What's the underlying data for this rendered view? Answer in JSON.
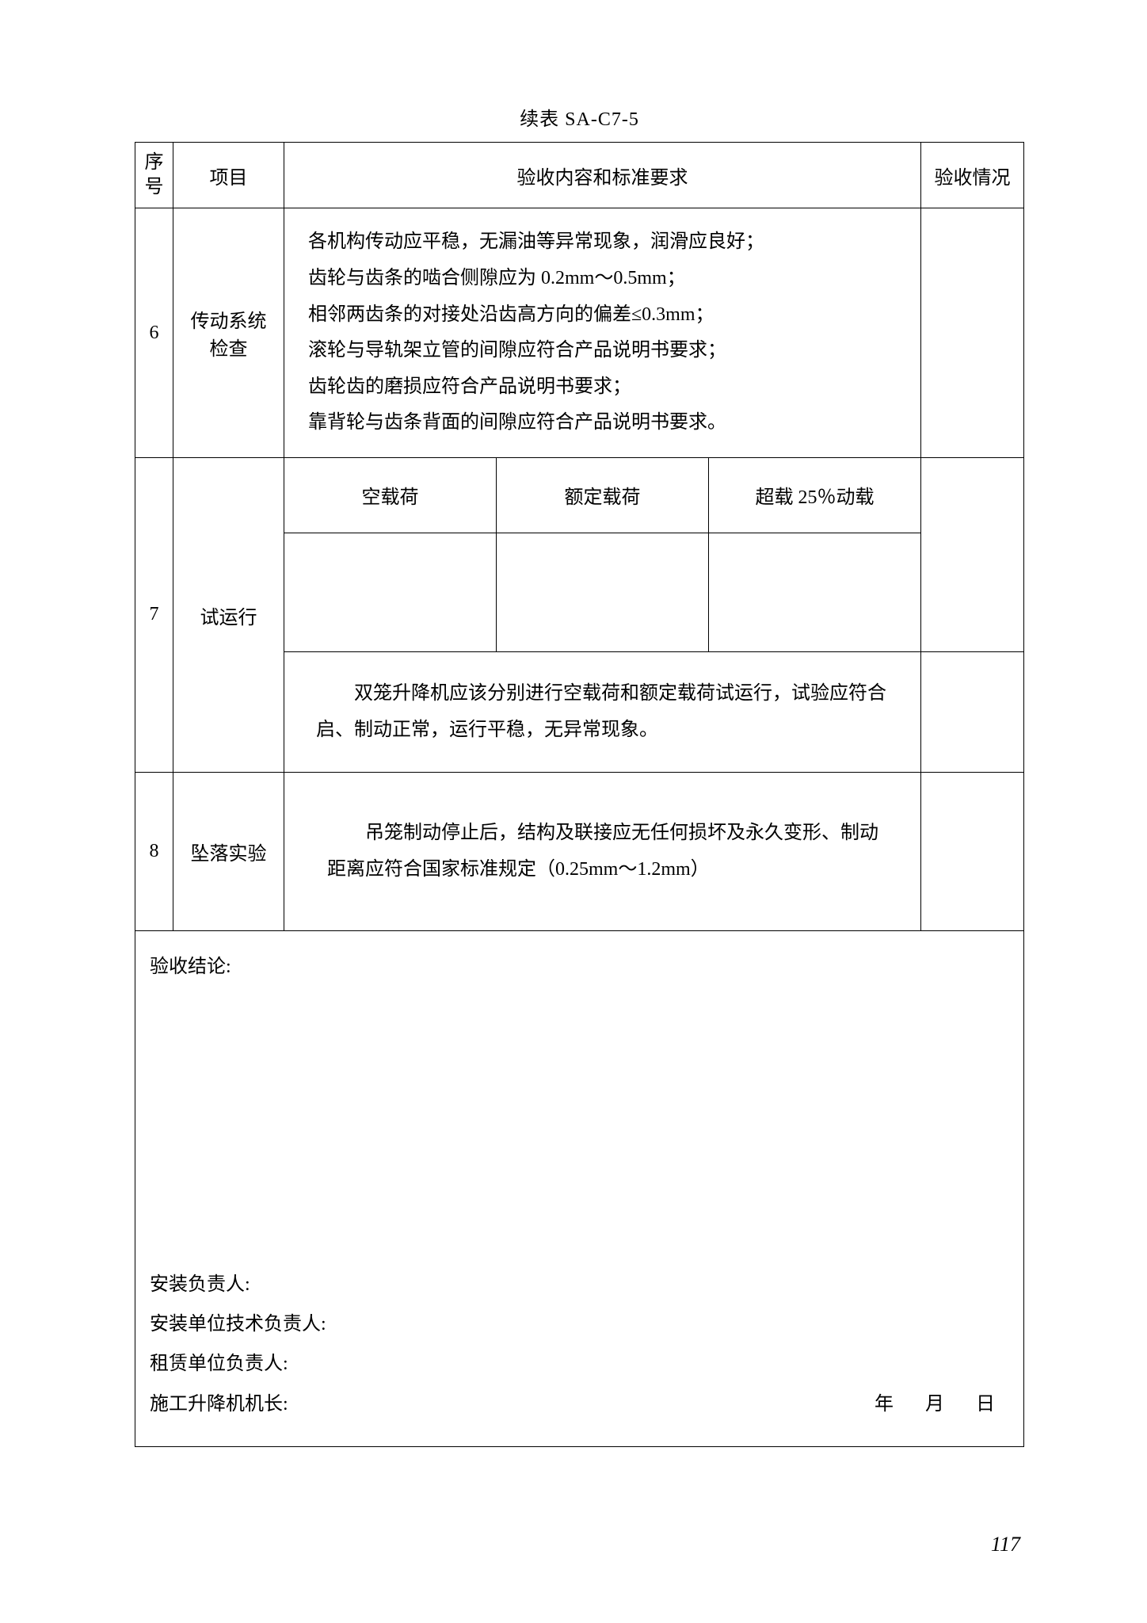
{
  "title": "续表 SA-C7-5",
  "header": {
    "seq": "序号",
    "item": "项目",
    "content": "验收内容和标准要求",
    "result": "验收情况"
  },
  "row6": {
    "seq": "6",
    "item": "传动系统检查",
    "lines": [
      "各机构传动应平稳，无漏油等异常现象，润滑应良好；",
      "齿轮与齿条的啮合侧隙应为 0.2mm～0.5mm；",
      "相邻两齿条的对接处沿齿高方向的偏差≤0.3mm；",
      "滚轮与导轨架立管的间隙应符合产品说明书要求；",
      "齿轮齿的磨损应符合产品说明书要求；",
      "靠背轮与齿条背面的间隙应符合产品说明书要求。"
    ]
  },
  "row7": {
    "seq": "7",
    "item": "试运行",
    "sub_headers": [
      "空载荷",
      "额定载荷",
      "超载 25％动载"
    ],
    "note": "　　双笼升降机应该分别进行空载荷和额定载荷试运行，试验应符合启、制动正常，运行平稳，无异常现象。"
  },
  "row8": {
    "seq": "8",
    "item": "坠落实验",
    "content": "　　吊笼制动停止后，结构及联接应无任何损坏及永久变形、制动距离应符合国家标准规定（0.25mm～1.2mm）"
  },
  "conclusion": {
    "label": "验收结论:",
    "sign1": "安装负责人:",
    "sign2": "安装单位技术负责人:",
    "sign3": "租赁单位负责人:",
    "sign4": "施工升降机机长:",
    "date": "年　月　日"
  },
  "page_number": "117"
}
